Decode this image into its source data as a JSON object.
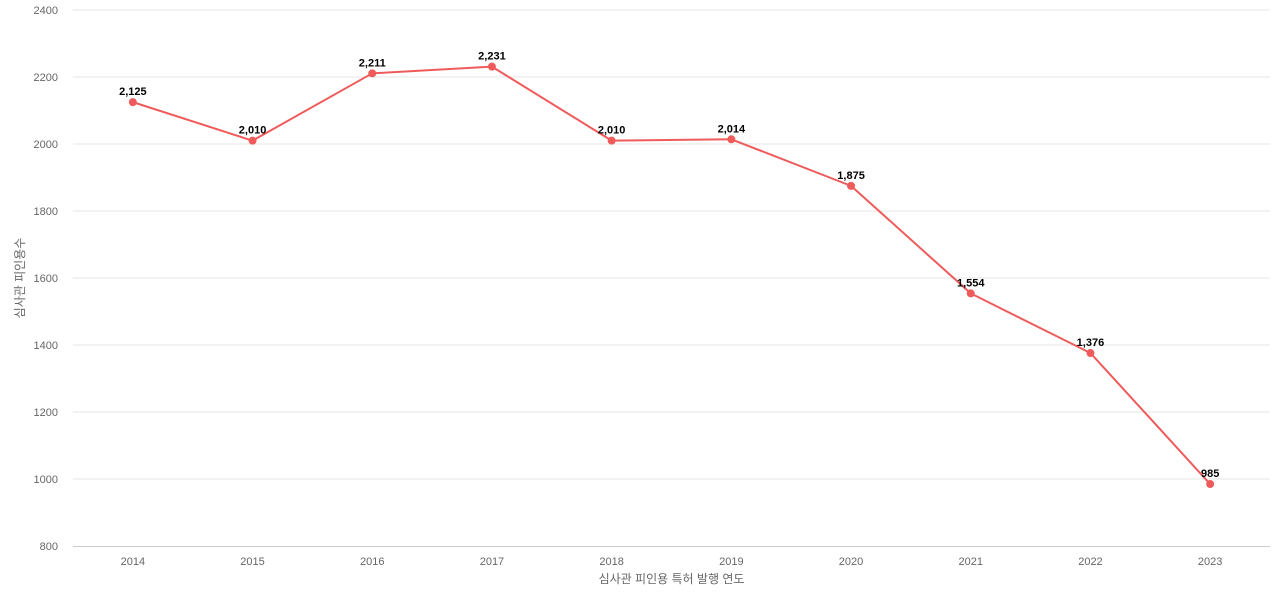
{
  "chart_data": {
    "type": "line",
    "title": "",
    "xlabel": "심사관 피인용 특허 발행 연도",
    "ylabel": "심사관 피인용수",
    "categories": [
      "2014",
      "2015",
      "2016",
      "2017",
      "2018",
      "2019",
      "2020",
      "2021",
      "2022",
      "2023"
    ],
    "series": [
      {
        "values": [
          2125,
          2010,
          2211,
          2231,
          2010,
          2014,
          1875,
          1554,
          1376,
          985
        ],
        "value_labels": [
          "2,125",
          "2,010",
          "2,211",
          "2,231",
          "2,010",
          "2,014",
          "1,875",
          "1,554",
          "1,376",
          "985"
        ],
        "color": "#ef5b5b"
      }
    ],
    "ylim": [
      800,
      2400
    ],
    "yticks": [
      800,
      1000,
      1200,
      1400,
      1600,
      1800,
      2000,
      2200,
      2400
    ],
    "ytick_labels": [
      "800",
      "1000",
      "1200",
      "1400",
      "1600",
      "1800",
      "2000",
      "2200",
      "2400"
    ],
    "grid": true,
    "legend": "none"
  }
}
